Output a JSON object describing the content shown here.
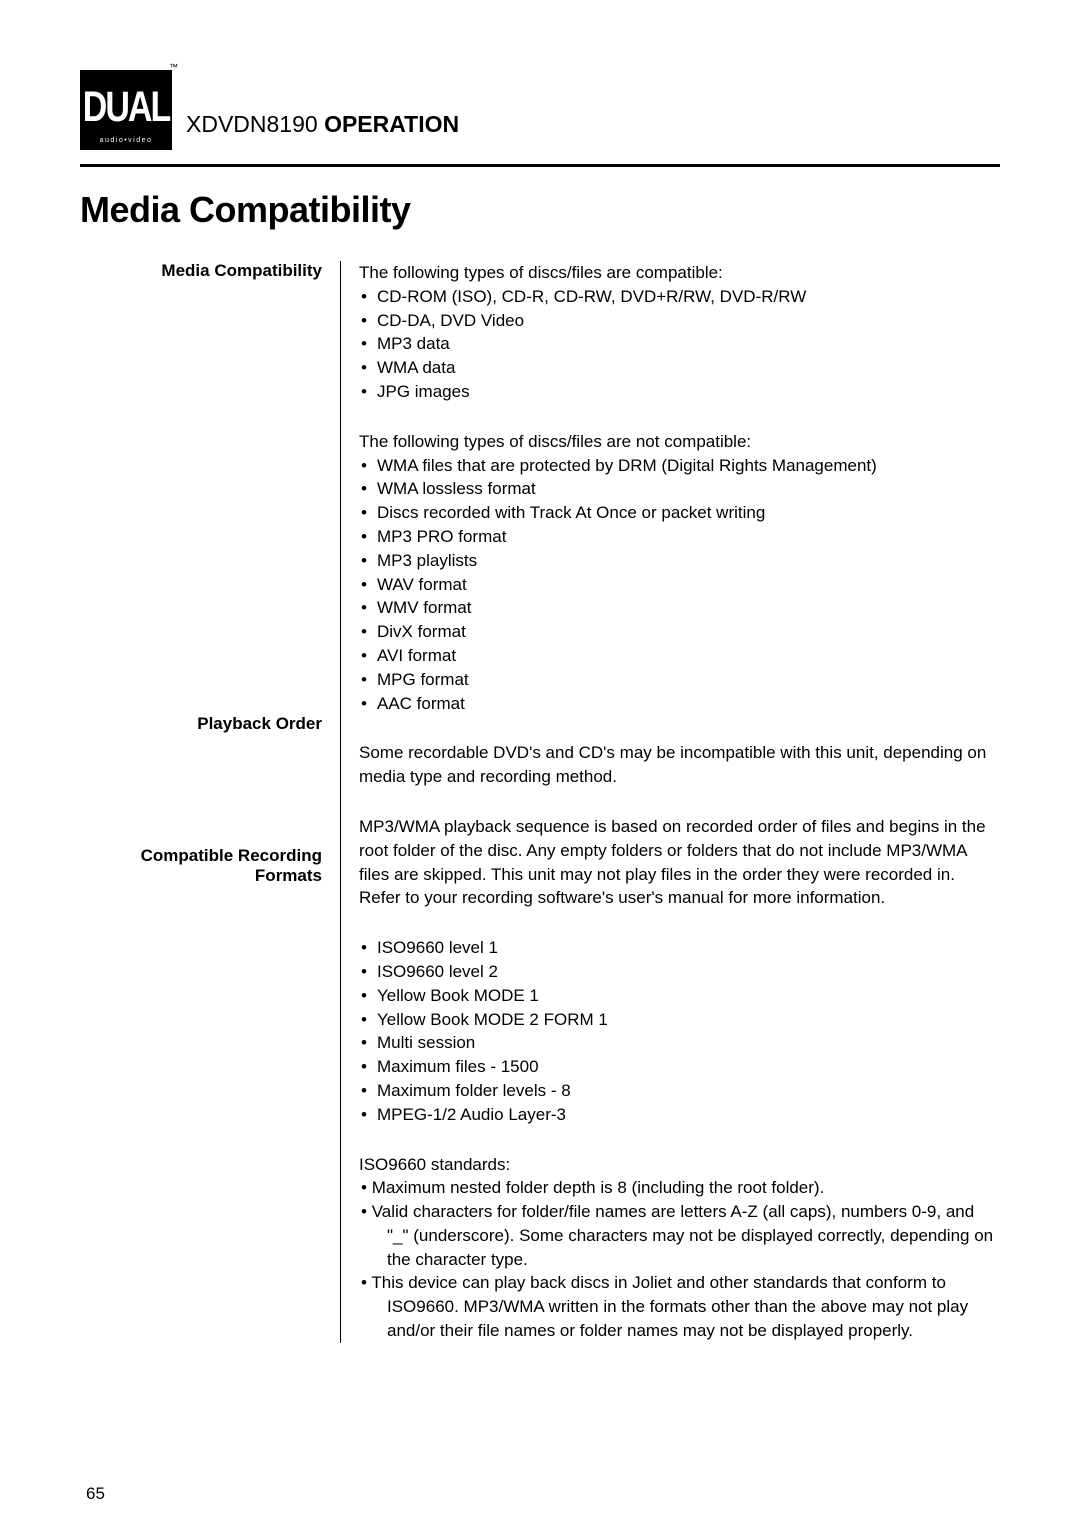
{
  "logo": {
    "main": "DUAL",
    "sub": "audio•video",
    "tm": "™"
  },
  "header": {
    "model": "XDVDN8190",
    "word": "OPERATION"
  },
  "page_title": "Media Compatibility",
  "labels": {
    "media": "Media Compatibility",
    "playback": "Playback Order",
    "formats": "Compatible Recording Formats"
  },
  "media": {
    "intro_compatible": "The following types of discs/files are compatible:",
    "compatible_items": [
      "CD-ROM (ISO), CD-R, CD-RW, DVD+R/RW, DVD-R/RW",
      "CD-DA, DVD Video",
      "MP3 data",
      "WMA data",
      "JPG images"
    ],
    "intro_not": "The following types of discs/files are not compatible:",
    "not_items": [
      "WMA files that are protected by DRM (Digital Rights Management)",
      "WMA lossless format",
      "Discs recorded with Track At Once or packet writing",
      "MP3 PRO format",
      "MP3 playlists",
      "WAV format",
      "WMV format",
      "DivX format",
      "AVI format",
      "MPG format",
      "AAC format"
    ],
    "note": "Some recordable DVD's and CD's may be incompatible with this unit, depending on media type and recording method."
  },
  "playback": {
    "text": "MP3/WMA playback sequence is based on recorded order of files and begins in the root folder of the disc. Any empty folders or folders that do not include MP3/WMA files are skipped. This unit may not play files in the order they were recorded in. Refer to your recording software's user's manual for more information."
  },
  "formats": {
    "items": [
      "ISO9660 level 1",
      "ISO9660 level 2",
      "Yellow Book MODE 1",
      "Yellow Book MODE 2 FORM 1",
      "Multi session",
      "Maximum files - 1500",
      "Maximum folder levels - 8",
      "MPEG-1/2 Audio Layer-3"
    ],
    "iso_heading": "ISO9660 standards:",
    "iso_items": [
      "Maximum nested folder depth is 8 (including the root folder).",
      "Valid characters for folder/file names are letters A-Z (all caps), numbers 0-9, and \"_\" (underscore). Some characters may not be displayed correctly, depending on the character type.",
      "This device can play back discs in Joliet and other standards that conform to ISO9660. MP3/WMA written in the formats other than the above may not play and/or their file names or folder names may not be displayed properly."
    ]
  },
  "page_number": "65"
}
